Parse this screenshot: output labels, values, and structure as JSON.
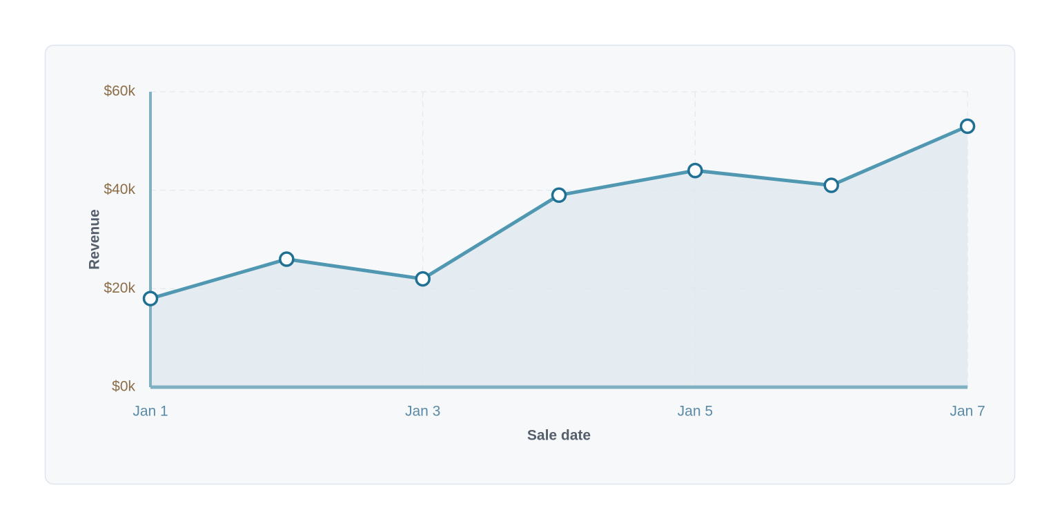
{
  "chart_data": {
    "type": "area",
    "x_label": "Sale date",
    "y_label": "Revenue",
    "categories": [
      "Jan 1",
      null,
      "Jan 3",
      null,
      "Jan 5",
      null,
      "Jan 7"
    ],
    "values": [
      18000,
      26000,
      22000,
      39000,
      44000,
      41000,
      53000
    ],
    "color": "#5097b2",
    "fill_color": "#e1e9ef",
    "marker_color": "#1f7093",
    "ylim": [
      0,
      60000
    ],
    "yticks": [
      {
        "value": 0,
        "label": "$0k"
      },
      {
        "value": 20000,
        "label": "$20k"
      },
      {
        "value": 40000,
        "label": "$40k"
      },
      {
        "value": 60000,
        "label": "$60k"
      }
    ],
    "grid": true
  }
}
